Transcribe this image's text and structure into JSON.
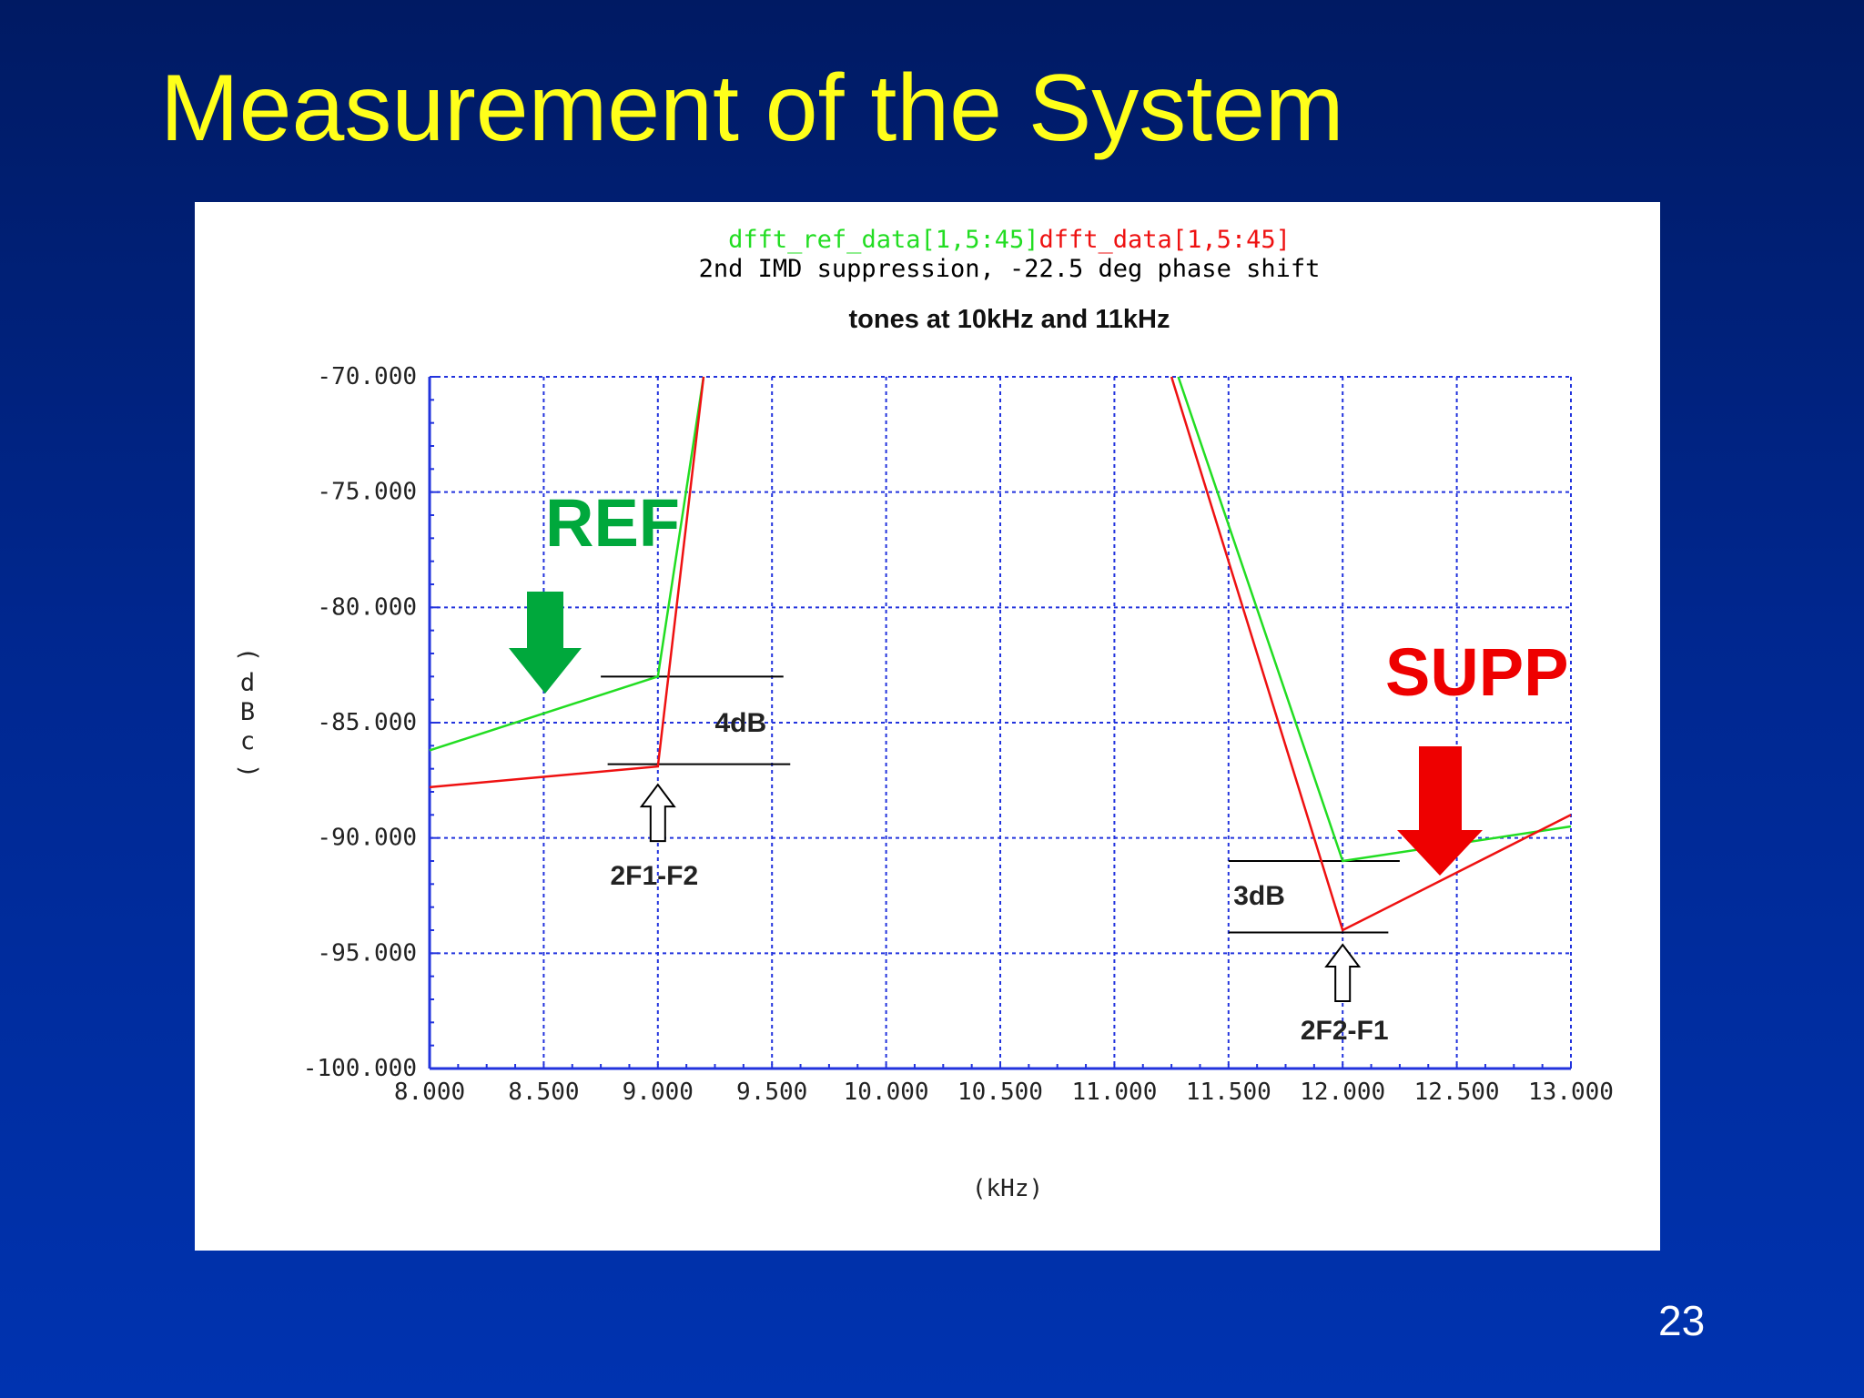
{
  "slide": {
    "title": "Measurement of the System",
    "page_number": "23"
  },
  "chart_data": {
    "type": "line",
    "title_lines": [
      {
        "parts": [
          {
            "text": "dfft_ref_data[1,5:45]",
            "color": "#22dd22"
          },
          {
            "text": "dfft_data[1,5:45]",
            "color": "#ee1111"
          }
        ]
      },
      {
        "parts": [
          {
            "text": "2nd IMD suppression, -22.5 deg phase shift",
            "color": "#000000"
          }
        ]
      }
    ],
    "subtitle": "tones at 10kHz and 11kHz",
    "xlabel": "(kHz)",
    "ylabel": "(dBc)",
    "xlim": [
      8.0,
      13.0
    ],
    "ylim": [
      -100.0,
      -70.0
    ],
    "xticks": [
      8.0,
      8.5,
      9.0,
      9.5,
      10.0,
      10.5,
      11.0,
      11.5,
      12.0,
      12.5,
      13.0
    ],
    "xtick_labels": [
      "8.000",
      "8.500",
      "9.000",
      "9.500",
      "10.000",
      "10.500",
      "11.000",
      "11.500",
      "12.000",
      "12.500",
      "13.000"
    ],
    "yticks": [
      -70,
      -75,
      -80,
      -85,
      -90,
      -95,
      -100
    ],
    "ytick_labels": [
      "-70.000",
      "-75.000",
      "-80.000",
      "-85.000",
      "-90.000",
      "-95.000",
      "-100.000"
    ],
    "grid": true,
    "series": [
      {
        "name": "dfft_ref_data[1,5:45]",
        "color": "#22dd22",
        "segments": [
          [
            [
              8.0,
              -86.2
            ],
            [
              9.0,
              -83.0
            ],
            [
              9.2,
              -70.0
            ]
          ],
          [
            [
              11.28,
              -70.0
            ],
            [
              12.0,
              -91.0
            ],
            [
              13.0,
              -89.5
            ]
          ]
        ]
      },
      {
        "name": "dfft_data[1,5:45]",
        "color": "#ee1111",
        "segments": [
          [
            [
              8.0,
              -87.8
            ],
            [
              9.0,
              -86.9
            ],
            [
              9.2,
              -70.0
            ]
          ],
          [
            [
              11.25,
              -70.0
            ],
            [
              12.0,
              -94.0
            ],
            [
              13.0,
              -89.0
            ]
          ]
        ]
      }
    ],
    "annotations": {
      "ref_label": {
        "text": "REF",
        "color": "#00a83c"
      },
      "supp_label": {
        "text": "SUPP",
        "color": "#ee0000"
      },
      "diff_left": {
        "text": "4dB",
        "x": 9.25,
        "y": -85.0
      },
      "diff_right": {
        "text": "3dB",
        "x": 12.0,
        "y": -92.5
      },
      "marker_left": {
        "text": "2F1-F2",
        "x": 9.0,
        "y": -86.9
      },
      "marker_right": {
        "text": "2F2-F1",
        "x": 12.0,
        "y": -94.0
      },
      "ref_lines": [
        {
          "x1": 8.75,
          "x2": 9.55,
          "y": -83.0
        },
        {
          "x1": 8.78,
          "x2": 9.58,
          "y": -86.8
        },
        {
          "x1": 11.5,
          "x2": 12.25,
          "y": -91.0
        },
        {
          "x1": 11.5,
          "x2": 12.2,
          "y": -94.1
        }
      ]
    }
  }
}
